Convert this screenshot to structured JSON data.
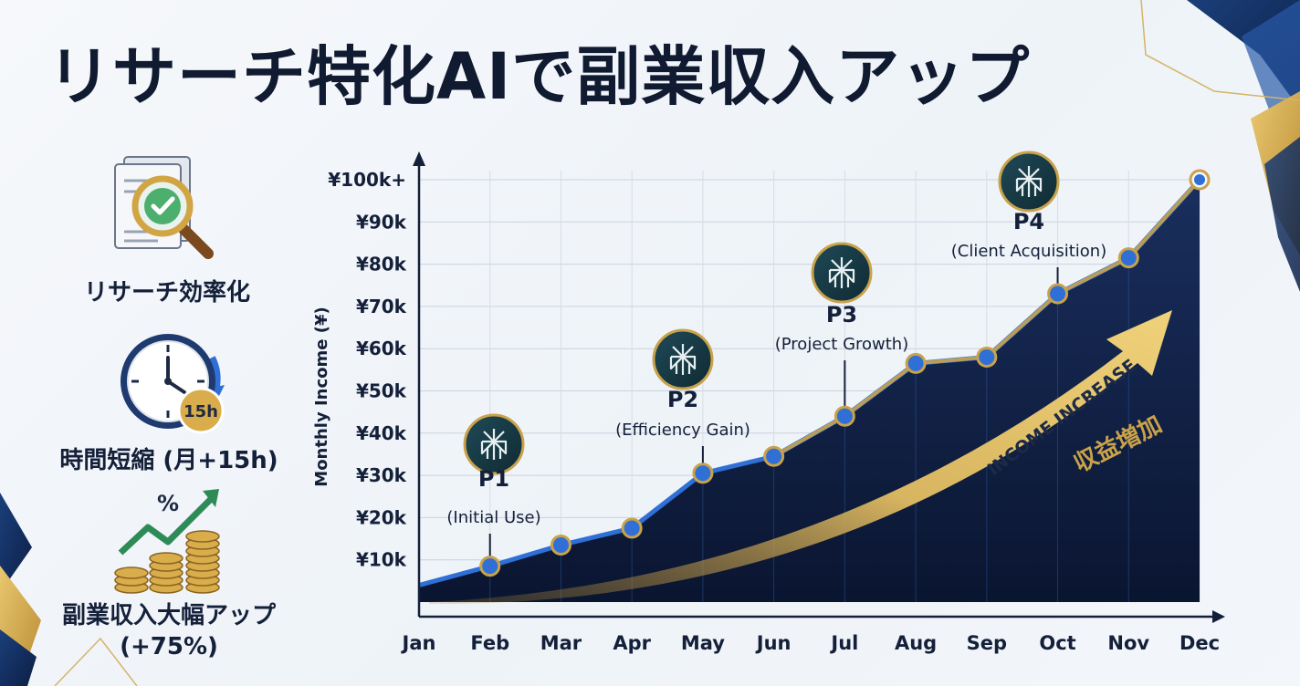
{
  "title": "リサーチ特化AIで副業収入アップ",
  "colors": {
    "navy": "#0f1d3a",
    "gold": "#c9a24a",
    "blue_marker": "#2f6fd6",
    "text": "#14203a"
  },
  "benefits": [
    {
      "icon": "document-magnifier-check-icon",
      "label": "リサーチ効率化"
    },
    {
      "icon": "clock-15h-icon",
      "label": "時間短縮 (月+15h)"
    },
    {
      "icon": "coins-growth-arrow-icon",
      "label": "副業収入大幅アップ\n(+75%)"
    }
  ],
  "chart_data": {
    "type": "area",
    "categories": [
      "Jan",
      "Feb",
      "Mar",
      "Apr",
      "May",
      "Jun",
      "Jul",
      "Aug",
      "Sep",
      "Oct",
      "Nov",
      "Dec"
    ],
    "values": [
      4,
      8.5,
      13.5,
      17.5,
      30.5,
      34.5,
      44,
      56.5,
      58,
      73,
      81.5,
      100
    ],
    "ylabel": "Monthly Income (¥)",
    "xlabel": "",
    "ylim": [
      0,
      100
    ],
    "y_ticks": [
      {
        "value": 10,
        "label": "¥10k"
      },
      {
        "value": 20,
        "label": "¥20k"
      },
      {
        "value": 30,
        "label": "¥30k"
      },
      {
        "value": 40,
        "label": "¥40k"
      },
      {
        "value": 50,
        "label": "¥50k"
      },
      {
        "value": 60,
        "label": "¥60k"
      },
      {
        "value": 70,
        "label": "¥70k"
      },
      {
        "value": 80,
        "label": "¥80k"
      },
      {
        "value": 90,
        "label": "¥90k"
      },
      {
        "value": 100,
        "label": "¥100k+"
      }
    ],
    "grid": true,
    "milestones": [
      {
        "name": "P1",
        "desc": "(Initial Use)",
        "month": "Feb",
        "icon": "perplexity-logo-icon"
      },
      {
        "name": "P2",
        "desc": "(Efficiency Gain)",
        "month": "May",
        "icon": "perplexity-logo-icon"
      },
      {
        "name": "P3",
        "desc": "(Project Growth)",
        "month": "Jul",
        "icon": "perplexity-logo-icon"
      },
      {
        "name": "P4",
        "desc": "(Client Acquisition)",
        "month": "Oct",
        "icon": "perplexity-logo-icon"
      }
    ],
    "trend_arrow": {
      "label_en": "INCOME INCREASE",
      "label_jp": "収益増加"
    }
  }
}
